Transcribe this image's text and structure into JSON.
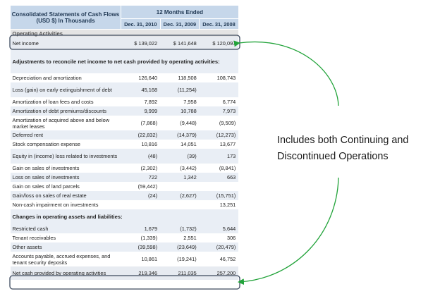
{
  "table": {
    "title": "Consolidated Statements of Cash Flows (USD $) In Thousands",
    "period_header": "12 Months Ended",
    "columns": [
      "Dec. 31, 2010",
      "Dec. 31, 2009",
      "Dec. 31, 2008"
    ],
    "rows": [
      {
        "label": "Operating Activities",
        "type": "section",
        "values": []
      },
      {
        "label": "Net income",
        "type": "highlight",
        "values": [
          "$ 139,022",
          "$ 141,648",
          "$ 120,097"
        ]
      },
      {
        "label": "Adjustments to reconcile net income to net cash provided by operating activities:",
        "type": "section",
        "values": []
      },
      {
        "label": "Depreciation and amortization",
        "type": "row",
        "values": [
          "126,640",
          "118,508",
          "108,743"
        ]
      },
      {
        "label": "Loss (gain) on early extinguishment of debt",
        "type": "row",
        "values": [
          "45,168",
          "(11,254)",
          ""
        ]
      },
      {
        "label": "Amortization of loan fees and costs",
        "type": "row",
        "values": [
          "7,892",
          "7,958",
          "6,774"
        ]
      },
      {
        "label": "Amortization of debt premiums/discounts",
        "type": "row",
        "values": [
          "9,999",
          "10,788",
          "7,973"
        ]
      },
      {
        "label": "Amortization of acquired above and below market leases",
        "type": "row",
        "values": [
          "(7,868)",
          "(9,448)",
          "(9,509)"
        ]
      },
      {
        "label": "Deferred rent",
        "type": "row",
        "values": [
          "(22,832)",
          "(14,379)",
          "(12,273)"
        ]
      },
      {
        "label": "Stock compensation expense",
        "type": "row",
        "values": [
          "10,816",
          "14,051",
          "13,677"
        ]
      },
      {
        "label": "Equity in (income) loss related to investments",
        "type": "row",
        "values": [
          "(48)",
          "(39)",
          "173"
        ]
      },
      {
        "label": "Gain on sales of investments",
        "type": "row",
        "values": [
          "(2,302)",
          "(3,442)",
          "(8,841)"
        ]
      },
      {
        "label": "Loss on sales of investments",
        "type": "row",
        "values": [
          "722",
          "1,342",
          "663"
        ]
      },
      {
        "label": "Gain on sales of land parcels",
        "type": "row",
        "values": [
          "(59,442)",
          "",
          ""
        ]
      },
      {
        "label": "Gain/loss on sales of real estate",
        "type": "row",
        "values": [
          "(24)",
          "(2,627)",
          "(15,751)"
        ]
      },
      {
        "label": "Non-cash impairment on investments",
        "type": "row",
        "values": [
          "",
          "",
          "13,251"
        ]
      },
      {
        "label": "Changes in operating assets and liabilities:",
        "type": "section",
        "values": []
      },
      {
        "label": "Restricted cash",
        "type": "row",
        "values": [
          "1,679",
          "(1,732)",
          "5,644"
        ]
      },
      {
        "label": "Tenant receivables",
        "type": "row",
        "values": [
          "(1,339)",
          "2,551",
          "306"
        ]
      },
      {
        "label": "Other assets",
        "type": "row",
        "values": [
          "(39,598)",
          "(23,649)",
          "(20,479)"
        ]
      },
      {
        "label": "Accounts payable, accrued expenses, and tenant security deposits",
        "type": "row",
        "values": [
          "10,861",
          "(19,241)",
          "46,752"
        ]
      },
      {
        "label": "Net cash provided by operating activities",
        "type": "highlight",
        "values": [
          "219,346",
          "211,035",
          "257,200"
        ]
      }
    ]
  },
  "callout": {
    "line1": "Includes both Continuing and",
    "line2": "Discontinued Operations"
  },
  "colors": {
    "header_bg": "#c6d7ea",
    "highlight_border": "#3d4a5e",
    "arrow": "#22a33a"
  }
}
